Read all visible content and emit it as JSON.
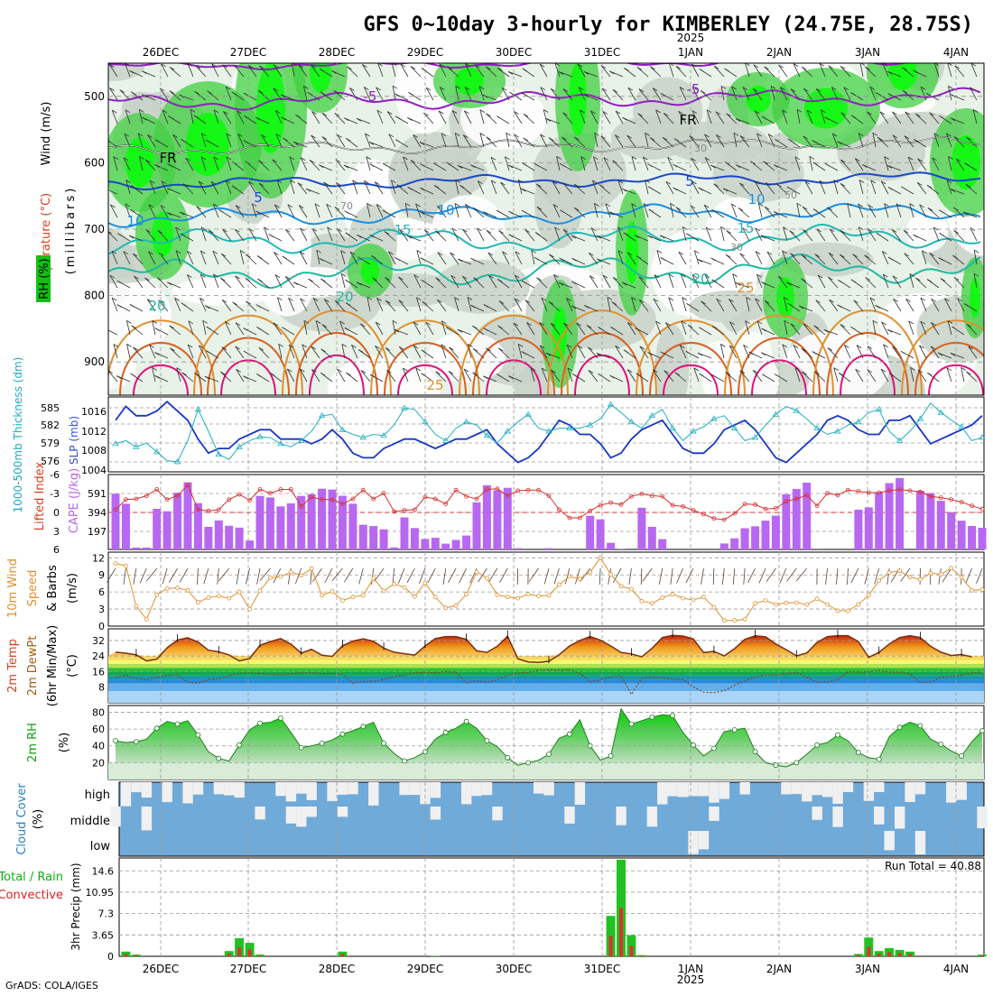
{
  "title": "GFS 0~10day 3-hourly for KIMBERLEY (24.75E, 28.75S)",
  "year_label": "2025",
  "date_labels": [
    "26DEC",
    "27DEC",
    "28DEC",
    "29DEC",
    "30DEC",
    "31DEC",
    "1JAN",
    "2JAN",
    "3JAN",
    "4JAN"
  ],
  "footer": "GrADS: COLA/IGES",
  "colors": {
    "purple": "#9020c0",
    "blue": "#1848c8",
    "skyblue": "#1c8ee0",
    "teal": "#20b8b8",
    "green": "#20b860",
    "orange": "#e09030",
    "red": "#d84020",
    "magenta": "#e0107a",
    "cloud_blue": "#70aad8",
    "rh_green": "#10c010"
  },
  "panels": {
    "upper": {
      "labels": [
        "Wind (m/s)",
        "Temperature (°C)",
        "RH (%)",
        "(millibars)"
      ],
      "y_ticks": [
        "500",
        "600",
        "700",
        "800",
        "900"
      ],
      "contour_labels": [
        "-5",
        "-5",
        "FR",
        "FR",
        "5",
        "5",
        "10",
        "10",
        "10",
        "15",
        "15",
        "20",
        "20",
        "20",
        "25",
        "25",
        "30",
        "30",
        "50",
        "70"
      ]
    },
    "thickness": {
      "label_left": "1000-500mb Thickness (dm)",
      "label_right": "SLP (mb)",
      "left_ticks": [
        "585",
        "582",
        "579",
        "576"
      ],
      "right_ticks": [
        "1016",
        "1012",
        "1008",
        "1004"
      ]
    },
    "cape": {
      "label_left": "Lifted Index",
      "label_right": "CAPE (J/kg)",
      "left_ticks": [
        "-3",
        "0",
        "3",
        "6"
      ],
      "right_ticks": [
        "591",
        "394",
        "197"
      ],
      "left_top_tick": "-6"
    },
    "wind10m": {
      "labels": [
        "10m Wind",
        "Speed",
        "& Barbs",
        "(m/s)"
      ],
      "ticks": [
        "12",
        "9",
        "6",
        "3",
        "0"
      ]
    },
    "temp2m": {
      "labels": [
        "2m Temp",
        "2m DewPt",
        "(6hr Min/Max)",
        "(°C)"
      ],
      "ticks": [
        "32",
        "24",
        "16",
        "8"
      ]
    },
    "rh2m": {
      "labels": [
        "2m RH",
        "(%)"
      ],
      "ticks": [
        "80",
        "60",
        "40",
        "20"
      ]
    },
    "cloud": {
      "labels": [
        "Cloud Cover",
        "(%)"
      ],
      "levels": [
        "high",
        "middle",
        "low"
      ]
    },
    "precip": {
      "label_left_1": "Total / Rain",
      "label_left_2": "Convective",
      "axis_label": "3hr Precip (mm)",
      "ticks": [
        "14.6",
        "10.95",
        "7.3",
        "3.65",
        "0"
      ],
      "run_total": "Run Total = 40.88"
    }
  },
  "chart_data": [
    {
      "type": "line",
      "name": "thickness",
      "series": [
        {
          "name": "1000-500mb Thickness",
          "unit": "dm",
          "values": [
            578.5,
            579,
            578,
            578.6,
            577.2,
            575.8,
            575.6,
            579,
            584,
            580.5,
            576.8,
            576,
            578,
            579,
            579.6,
            579.5,
            578.5,
            578,
            579,
            580.5,
            583,
            583.2,
            580.7,
            580,
            579.5,
            580,
            579.8,
            581.5,
            584.2,
            584,
            582,
            580,
            579,
            581,
            582,
            581.5,
            579.8,
            578.6,
            580.5,
            582,
            583.2,
            581,
            580.5,
            581,
            581,
            581,
            581.5,
            582.5,
            584.8,
            583.5,
            582,
            581,
            583,
            584,
            581,
            579,
            580.5,
            581.2,
            582.5,
            583,
            581,
            579,
            579.5,
            581.5,
            583.2,
            584.5,
            583.8,
            582.5,
            581,
            580,
            580.5,
            581.5,
            582,
            583.5,
            584,
            580.5,
            579,
            580.5,
            582.5,
            585,
            583.5,
            582.3,
            581.2,
            579,
            579.5
          ]
        },
        {
          "name": "SLP",
          "unit": "mb",
          "values": [
            1014,
            1017,
            1015,
            1015,
            1016,
            1018,
            1016,
            1014,
            1010,
            1007,
            1008,
            1008,
            1010,
            1011,
            1012,
            1012,
            1010,
            1010,
            1010,
            1009,
            1010,
            1012,
            1010,
            1007,
            1006,
            1006,
            1008,
            1009,
            1010,
            1010,
            1009,
            1008,
            1009,
            1010,
            1010,
            1011,
            1012,
            1009,
            1007,
            1005,
            1006,
            1008,
            1011,
            1014,
            1013,
            1011,
            1011,
            1009,
            1006,
            1007,
            1010,
            1012,
            1013,
            1014,
            1011,
            1008,
            1007,
            1007,
            1009,
            1012,
            1013,
            1014,
            1012,
            1009,
            1006,
            1005,
            1007,
            1009,
            1011,
            1014,
            1015,
            1014,
            1012,
            1011,
            1011,
            1014,
            1014,
            1015,
            1012,
            1009,
            1010,
            1011,
            1012,
            1013,
            1015
          ]
        }
      ]
    },
    {
      "type": "bar",
      "name": "CAPE",
      "unit": "J/kg",
      "values": [
        587,
        480,
        20,
        20,
        427,
        402,
        596,
        706,
        487,
        237,
        305,
        249,
        230,
        94,
        563,
        547,
        453,
        485,
        563,
        582,
        639,
        630,
        565,
        480,
        259,
        246,
        211,
        21,
        337,
        225,
        110,
        122,
        61,
        100,
        146,
        496,
        676,
        622,
        648,
        13,
        0,
        0,
        13,
        0,
        0,
        0,
        354,
        316,
        69,
        3,
        0,
        439,
        238,
        108,
        0,
        0,
        0,
        0,
        0,
        63,
        117,
        223,
        243,
        303,
        355,
        581,
        637,
        703,
        1,
        0,
        0,
        0,
        418,
        442,
        602,
        698,
        751,
        0,
        617,
        593,
        512,
        389,
        302,
        247,
        228
      ],
      "line": {
        "name": "Lifted Index",
        "values": [
          -0.3,
          -1.9,
          -2,
          -2.5,
          -3.5,
          -1.9,
          -2.5,
          -4.2,
          -0.3,
          -0.1,
          -0.3,
          -1.9,
          -2.7,
          -1.8,
          -3.5,
          -2.9,
          -3.5,
          -3.5,
          -0.8,
          -2.3,
          -1.9,
          -1.9,
          -1.2,
          -2,
          -3.4,
          -2,
          -2.9,
          0,
          -0.2,
          -0.3,
          -2.3,
          -2,
          -1.2,
          -3.4,
          -2.4,
          -2,
          -3.5,
          -3.6,
          -2.5,
          -3.3,
          -3.4,
          -3.4,
          -2.5,
          -0.3,
          1,
          1,
          -0.1,
          -1,
          -1.4,
          -1.1,
          -2.4,
          -2.8,
          -2.5,
          -2.4,
          -1,
          -0.8,
          -0.2,
          0.4,
          1.1,
          1.3,
          0.3,
          -1.2,
          -1.1,
          -0.4,
          -0.5,
          -1.6,
          -2,
          -2.6,
          -0.9,
          -2.9,
          -2.6,
          -3.4,
          -3.2,
          -3,
          -3,
          -3.3,
          -3.5,
          -3.3,
          -3.1,
          -2.4,
          -2.2,
          -1.9,
          -1.5,
          -0.9,
          -0.4
        ]
      }
    },
    {
      "type": "line",
      "name": "10m Wind Speed",
      "unit": "m/s",
      "values": [
        11,
        10.6,
        3.5,
        1.2,
        5.5,
        6.6,
        6.7,
        6.3,
        4.2,
        5,
        5.3,
        4.9,
        6,
        3,
        6.2,
        8.5,
        8.7,
        9.5,
        8.9,
        10.1,
        5.4,
        6.1,
        4.5,
        5.1,
        5.4,
        8.4,
        6.2,
        7.4,
        6.8,
        5.2,
        7.6,
        5.1,
        3.2,
        3.6,
        5.6,
        9.5,
        8.4,
        5.5,
        5.1,
        4.9,
        5.6,
        5.3,
        5.4,
        7.3,
        8.7,
        8.3,
        9.5,
        12,
        9.1,
        7,
        6.5,
        4.4,
        4,
        5,
        5.6,
        4.9,
        4.6,
        5.1,
        3.3,
        1,
        1,
        1.2,
        4,
        4.5,
        3.8,
        4.1,
        4.1,
        3.8,
        4.8,
        3.8,
        2.7,
        2.7,
        3.8,
        5.4,
        8,
        9.4,
        9.7,
        8.6,
        8.2,
        9.3,
        9.1,
        10.2,
        8.6,
        6.3,
        6.4
      ]
    },
    {
      "type": "line",
      "name": "2m Temp and DewPt",
      "unit": "°C",
      "series": [
        {
          "name": "2m Temp",
          "values": [
            26,
            25.5,
            24.6,
            21.5,
            22.4,
            28.2,
            32.2,
            33.4,
            31.2,
            27,
            26.2,
            24.6,
            21.5,
            22.7,
            29.5,
            31.4,
            33,
            30.1,
            25.5,
            27.5,
            24.4,
            23.8,
            29.3,
            31.7,
            32.8,
            31.6,
            28.1,
            26,
            25.2,
            24.5,
            29.2,
            33,
            34,
            34,
            32.6,
            26.7,
            25.9,
            29,
            34.2,
            22.6,
            21,
            20.7,
            21.3,
            24.7,
            29.2,
            32,
            34,
            32.2,
            29.2,
            25.8,
            25.1,
            23.6,
            28,
            33.5,
            34.6,
            34.3,
            32.8,
            25.8,
            26.4,
            24.1,
            27.8,
            32.6,
            34.4,
            33.9,
            30.2,
            27.3,
            24.1,
            25.6,
            31,
            34,
            34.5,
            34.5,
            31.4,
            23.3,
            25.9,
            30.2,
            33.5,
            34.5,
            33.5,
            29,
            26,
            24.3,
            24.8,
            23.6
          ]
        },
        {
          "name": "2m DewPt",
          "values": [
            13,
            14.1,
            12.6,
            11.8,
            13.1,
            14.2,
            14.3,
            10.5,
            10.1,
            12,
            12.3,
            13.9,
            15.1,
            15.2,
            15.1,
            14.7,
            14.3,
            14.9,
            15.4,
            15.4,
            15,
            15,
            14.8,
            10.1,
            10.9,
            11,
            12,
            13.5,
            14.2,
            15.5,
            15.6,
            15.4,
            16,
            15.6,
            10.2,
            11.2,
            10.5,
            11.8,
            14.3,
            15.1,
            15.6,
            16.7,
            16.9,
            16.7,
            16.9,
            15.1,
            10.7,
            11.8,
            13.2,
            14,
            4.3,
            12.6,
            13.2,
            12.9,
            12.2,
            12,
            8.2,
            5.4,
            5.3,
            6.2,
            9,
            11.2,
            13.3,
            14.4,
            14.2,
            14.9,
            15.5,
            13.2,
            10.6,
            10.5,
            12.1,
            15.9,
            15.8,
            15.9,
            16.6,
            15.7,
            15.8,
            14.8,
            10.4,
            10.6,
            13.1,
            13.5,
            14.2,
            15.3,
            15.3
          ]
        }
      ]
    },
    {
      "type": "area",
      "name": "2m RH",
      "unit": "%",
      "values": [
        46,
        44,
        45,
        48,
        61,
        69,
        66,
        70,
        53,
        33,
        25,
        22,
        41,
        59,
        67,
        68,
        73,
        56,
        38,
        40,
        43,
        47,
        54,
        58,
        63,
        68,
        43,
        31,
        22,
        26,
        33,
        48,
        56,
        61,
        69,
        61,
        46,
        39,
        26,
        17,
        20,
        23,
        30,
        49,
        54,
        71,
        40,
        23,
        28,
        84,
        66,
        70,
        74,
        77,
        76,
        56,
        41,
        28,
        37,
        57,
        59,
        61,
        33,
        20,
        17,
        15,
        20,
        30,
        41,
        44,
        53,
        46,
        32,
        26,
        24,
        51,
        62,
        68,
        64,
        48,
        42,
        34,
        28,
        45,
        58
      ]
    }
  ]
}
